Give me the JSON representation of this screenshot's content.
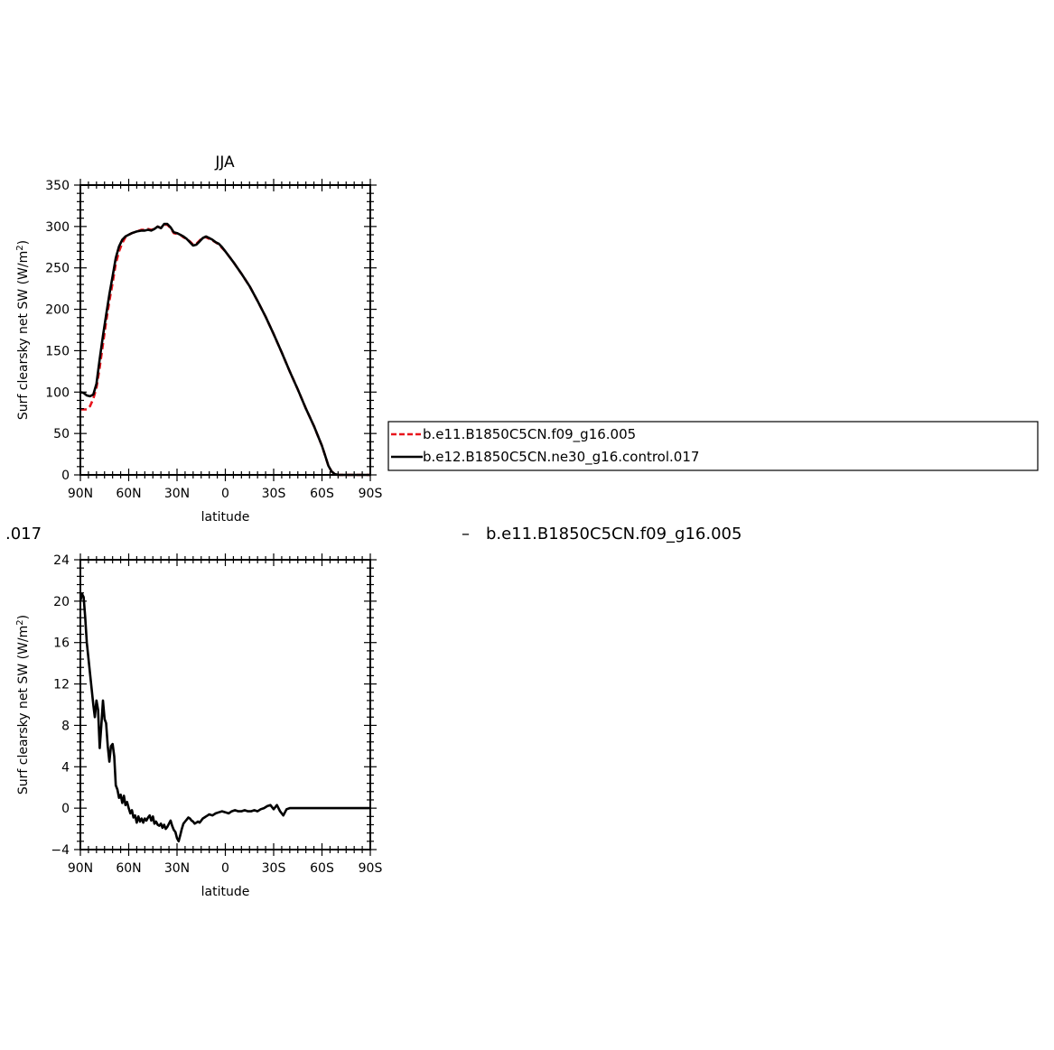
{
  "chart_data": [
    {
      "type": "line",
      "title": "JJA",
      "xlabel": "latitude",
      "ylabel_main": "Surf clearsky net SW (W/m",
      "ylabel_sup": "2",
      "ylabel_close": ")",
      "xlim": [
        90,
        -90
      ],
      "ylim": [
        0,
        350
      ],
      "x_ticks": [
        {
          "value": 90,
          "label": "90N"
        },
        {
          "value": 60,
          "label": "60N"
        },
        {
          "value": 30,
          "label": "30N"
        },
        {
          "value": 0,
          "label": "0"
        },
        {
          "value": -30,
          "label": "30S"
        },
        {
          "value": -60,
          "label": "60S"
        },
        {
          "value": -90,
          "label": "90S"
        }
      ],
      "y_ticks": [
        {
          "value": 0,
          "label": "0"
        },
        {
          "value": 50,
          "label": "50"
        },
        {
          "value": 100,
          "label": "100"
        },
        {
          "value": 150,
          "label": "150"
        },
        {
          "value": 200,
          "label": "200"
        },
        {
          "value": 250,
          "label": "250"
        },
        {
          "value": 300,
          "label": "300"
        },
        {
          "value": 350,
          "label": "350"
        }
      ],
      "legend": {
        "placement": "right",
        "entries": [
          {
            "label": "b.e11.B1850C5CN.f09_g16.005",
            "color": "#e8141c",
            "dash": true
          },
          {
            "label": "b.e12.B1850C5CN.ne30_g16.control.017",
            "color": "#000000",
            "dash": false
          }
        ]
      },
      "series": [
        {
          "name": "b.e11.B1850C5CN.f09_g16.005",
          "color": "#e8141c",
          "dash": true,
          "x": [
            90,
            88,
            86,
            84,
            82,
            80,
            78,
            76,
            74,
            72,
            70,
            68,
            66,
            64,
            62,
            60,
            58,
            55,
            52,
            50,
            48,
            46,
            44,
            42,
            40,
            38,
            36,
            34,
            32,
            30,
            28,
            26,
            24,
            22,
            20,
            18,
            16,
            14,
            12,
            10,
            8,
            6,
            4,
            2,
            0,
            -5,
            -10,
            -15,
            -20,
            -25,
            -30,
            -35,
            -40,
            -45,
            -50,
            -55,
            -60,
            -62,
            -64,
            -66,
            -68,
            -70,
            -75,
            -80,
            -85,
            -90
          ],
          "y": [
            79,
            79,
            79,
            83,
            92,
            105,
            130,
            158,
            185,
            210,
            232,
            255,
            270,
            280,
            287,
            290,
            292,
            294,
            296,
            296,
            297,
            296,
            297,
            300,
            298,
            302,
            302,
            298,
            292,
            291,
            290,
            287,
            285,
            282,
            278,
            279,
            283,
            287,
            287,
            285,
            283,
            281,
            278,
            274,
            270,
            257,
            243,
            228,
            210,
            191,
            170,
            148,
            125,
            103,
            80,
            59,
            35,
            23,
            11,
            4,
            1,
            0,
            0,
            0,
            0,
            0
          ]
        },
        {
          "name": "b.e12.B1850C5CN.ne30_g16.control.017",
          "color": "#000000",
          "dash": false,
          "x": [
            90,
            88,
            86,
            84,
            82,
            80,
            78,
            76,
            74,
            72,
            70,
            68,
            66,
            64,
            62,
            60,
            58,
            55,
            52,
            50,
            48,
            46,
            44,
            42,
            40,
            38,
            36,
            34,
            32,
            30,
            28,
            26,
            24,
            22,
            20,
            18,
            16,
            14,
            12,
            10,
            8,
            6,
            4,
            2,
            0,
            -5,
            -10,
            -15,
            -20,
            -25,
            -30,
            -35,
            -40,
            -45,
            -50,
            -55,
            -60,
            -62,
            -64,
            -66,
            -68,
            -70,
            -75,
            -80,
            -85,
            -90
          ],
          "y": [
            100,
            99,
            96,
            95,
            97,
            110,
            140,
            168,
            193,
            218,
            240,
            262,
            276,
            284,
            288,
            290,
            292,
            294,
            295,
            295,
            296,
            295,
            297,
            300,
            298,
            303,
            303,
            299,
            293,
            292,
            290,
            288,
            285,
            281,
            277,
            278,
            282,
            286,
            288,
            286,
            284,
            281,
            279,
            275,
            270,
            257,
            243,
            228,
            210,
            191,
            170,
            148,
            125,
            103,
            80,
            59,
            35,
            23,
            11,
            4,
            1,
            0,
            0,
            0,
            0,
            0
          ]
        }
      ]
    },
    {
      "type": "line",
      "title": "",
      "xlabel": "latitude",
      "ylabel_main": "Surf clearsky net SW (W/m",
      "ylabel_sup": "2",
      "ylabel_close": ")",
      "xlim": [
        90,
        -90
      ],
      "ylim": [
        -4,
        24
      ],
      "x_ticks": [
        {
          "value": 90,
          "label": "90N"
        },
        {
          "value": 60,
          "label": "60N"
        },
        {
          "value": 30,
          "label": "30N"
        },
        {
          "value": 0,
          "label": "0"
        },
        {
          "value": -30,
          "label": "30S"
        },
        {
          "value": -60,
          "label": "60S"
        },
        {
          "value": -90,
          "label": "90S"
        }
      ],
      "y_ticks": [
        {
          "value": -4,
          "label": "−4"
        },
        {
          "value": 0,
          "label": "0"
        },
        {
          "value": 4,
          "label": "4"
        },
        {
          "value": 8,
          "label": "8"
        },
        {
          "value": 12,
          "label": "12"
        },
        {
          "value": 16,
          "label": "16"
        },
        {
          "value": 20,
          "label": "20"
        },
        {
          "value": 24,
          "label": "24"
        }
      ],
      "series": [
        {
          "color": "#000000",
          "dash": false,
          "x": [
            90,
            89,
            88,
            87,
            86,
            85,
            84,
            83,
            82,
            81,
            80,
            79,
            78,
            77,
            76,
            75,
            74,
            73,
            72,
            71,
            70,
            69,
            68,
            67,
            66,
            65,
            64,
            63,
            62,
            61,
            60,
            59,
            58,
            57,
            56,
            55,
            54,
            53,
            52,
            51,
            50,
            49,
            48,
            47,
            46,
            45,
            44,
            43,
            42,
            41,
            40,
            39,
            38,
            37,
            36,
            35,
            34,
            33,
            32,
            31,
            30,
            29,
            28,
            27,
            26,
            25,
            24,
            23,
            22,
            21,
            20,
            19,
            18,
            17,
            16,
            15,
            14,
            13,
            12,
            11,
            10,
            8,
            6,
            4,
            2,
            0,
            -2,
            -4,
            -6,
            -8,
            -10,
            -12,
            -14,
            -16,
            -18,
            -20,
            -22,
            -24,
            -26,
            -28,
            -30,
            -32,
            -34,
            -36,
            -38,
            -40,
            -42,
            -44,
            -46,
            -48,
            -50,
            -52,
            -54,
            -56,
            -58,
            -60,
            -61,
            -62,
            -63,
            -64,
            -65,
            -66,
            -68,
            -70,
            -75,
            -80,
            -85,
            -90
          ],
          "y": [
            20.0,
            20.7,
            20.4,
            18.5,
            16.0,
            14.5,
            13.0,
            11.5,
            10.0,
            8.8,
            10.4,
            9.5,
            5.8,
            8.0,
            10.4,
            8.6,
            8.2,
            6.0,
            4.5,
            6.0,
            6.2,
            5.0,
            2.2,
            1.8,
            1.0,
            1.3,
            0.5,
            1.2,
            0.3,
            0.6,
            0.0,
            -0.5,
            -0.2,
            -0.9,
            -0.7,
            -1.4,
            -0.8,
            -1.3,
            -1.0,
            -1.4,
            -1.0,
            -1.2,
            -0.9,
            -0.7,
            -1.2,
            -0.8,
            -1.5,
            -1.3,
            -1.6,
            -1.7,
            -1.5,
            -1.9,
            -1.6,
            -2.0,
            -1.8,
            -1.5,
            -1.2,
            -1.7,
            -2.1,
            -2.3,
            -2.9,
            -3.2,
            -2.6,
            -2.0,
            -1.5,
            -1.3,
            -1.1,
            -0.9,
            -1.0,
            -1.2,
            -1.3,
            -1.5,
            -1.4,
            -1.3,
            -1.4,
            -1.2,
            -1.0,
            -0.9,
            -0.8,
            -0.7,
            -0.6,
            -0.7,
            -0.5,
            -0.4,
            -0.3,
            -0.4,
            -0.5,
            -0.3,
            -0.2,
            -0.3,
            -0.3,
            -0.2,
            -0.3,
            -0.3,
            -0.2,
            -0.3,
            -0.1,
            0.0,
            0.2,
            0.3,
            -0.1,
            0.3,
            -0.3,
            -0.7,
            -0.1,
            0.0,
            0.0,
            0.0,
            0.0,
            0.0,
            0.0,
            0.0,
            0.0,
            0.0,
            0.0,
            0.0,
            0.0,
            0.0,
            0.0,
            0.0,
            0.0,
            0.0,
            0.0,
            0.0,
            0.0,
            0.0,
            0.0,
            0.0
          ]
        }
      ]
    }
  ],
  "fragments": {
    "left_text": ".017",
    "legend_dash": "–",
    "legend_text": "b.e11.B1850C5CN.f09_g16.005"
  }
}
